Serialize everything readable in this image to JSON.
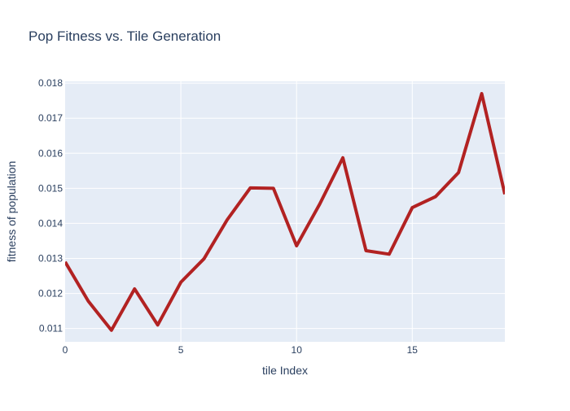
{
  "chart_data": {
    "type": "line",
    "title": "Pop Fitness vs. Tile Generation",
    "xlabel": "tile Index",
    "ylabel": "fitness of population",
    "x": [
      0,
      1,
      2,
      3,
      4,
      5,
      6,
      7,
      8,
      9,
      10,
      11,
      12,
      13,
      14,
      15,
      16,
      17,
      18,
      19
    ],
    "series": [
      {
        "values": [
          0.0129,
          0.01178,
          0.01095,
          0.01213,
          0.0111,
          0.01232,
          0.01299,
          0.0141,
          0.01501,
          0.015,
          0.01336,
          0.01455,
          0.01587,
          0.01322,
          0.01312,
          0.01445,
          0.01476,
          0.01545,
          0.0177,
          0.01483
        ],
        "color": "#b22222"
      }
    ],
    "xlim": [
      0,
      19
    ],
    "ylim": [
      0.01062,
      0.01805
    ],
    "xticks": [
      0,
      5,
      10,
      15
    ],
    "xtick_labels": [
      "0",
      "5",
      "10",
      "15"
    ],
    "yticks": [
      0.011,
      0.012,
      0.013,
      0.014,
      0.015,
      0.016,
      0.017,
      0.018
    ],
    "ytick_labels": [
      "0.011",
      "0.012",
      "0.013",
      "0.014",
      "0.015",
      "0.016",
      "0.017",
      "0.018"
    ],
    "grid": true,
    "legend": "none",
    "plot_background": "#e5ecf6",
    "text_color": "#2a3f5f"
  }
}
